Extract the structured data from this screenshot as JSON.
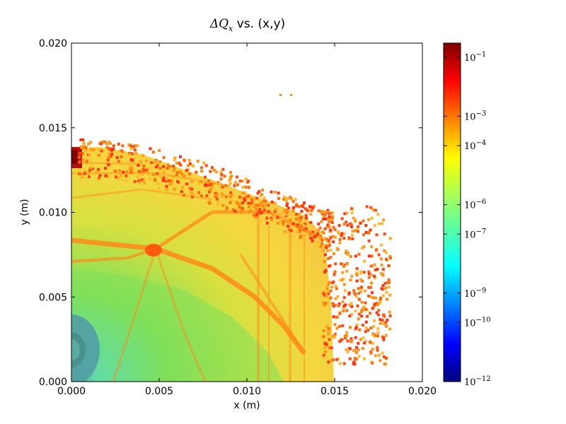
{
  "chart_data": {
    "type": "heatmap",
    "title": {
      "symbol": "ΔQ",
      "subscript": "x",
      "rest": "vs. (x,y)"
    },
    "xlabel": "x (m)",
    "ylabel": "y (m)",
    "xlim": [
      0.0,
      0.02
    ],
    "ylim": [
      0.0,
      0.02
    ],
    "x_ticks": [
      "0.000",
      "0.005",
      "0.010",
      "0.015",
      "0.020"
    ],
    "y_ticks": [
      "0.000",
      "0.005",
      "0.010",
      "0.015",
      "0.020"
    ],
    "colorbar": {
      "scale": "log",
      "colormap": "jet",
      "labels": [
        {
          "base": "10",
          "exp": "−1"
        },
        {
          "base": "10",
          "exp": "−3"
        },
        {
          "base": "10",
          "exp": "−4"
        },
        {
          "base": "10",
          "exp": "−6"
        },
        {
          "base": "10",
          "exp": "−7"
        },
        {
          "base": "10",
          "exp": "−9"
        },
        {
          "base": "10",
          "exp": "−10"
        },
        {
          "base": "10",
          "exp": "−12"
        }
      ],
      "range": [
        "1e-12",
        "3e-1"
      ]
    },
    "colors": {
      "background_field": "#f5d640",
      "core_field": "#7fe05a",
      "low_region": "#1a50ff",
      "resonance": "#ff7a10",
      "scatter_edge": "#ff3a10",
      "high_corner": "#8b0000"
    },
    "grid": false
  }
}
